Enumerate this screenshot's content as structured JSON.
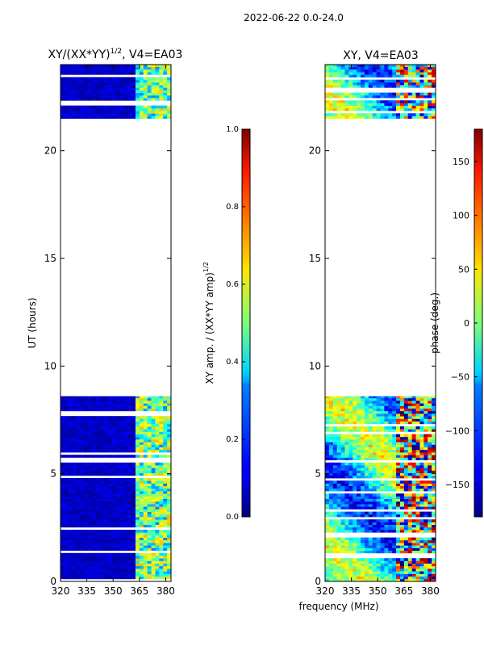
{
  "figure_title": "2022-06-22 0.0-24.0",
  "xlabel_shared": "frequency (MHz)",
  "chart_data": [
    {
      "type": "heatmap",
      "title": "XY/(XX*YY)",
      "title_sup": "1/2",
      "title_suffix": ", V4=EA03",
      "ylabel": "UT (hours)",
      "xlim": [
        320,
        383
      ],
      "ylim": [
        0,
        24
      ],
      "xticks": [
        320,
        335,
        350,
        365,
        380
      ],
      "yticks": [
        0,
        5,
        10,
        15,
        20
      ],
      "data_coverage_hours": [
        [
          0,
          8.6
        ],
        [
          21.5,
          24
        ]
      ],
      "colorbar": {
        "label": "XY amp. / (XX*YY amp)",
        "label_sup": "1/2",
        "range": [
          0.0,
          1.0
        ],
        "ticks": [
          "0.0",
          "0.2",
          "0.4",
          "0.6",
          "0.8",
          "1.0"
        ],
        "colormap": "jet"
      }
    },
    {
      "type": "heatmap",
      "title": "XY, V4=EA03",
      "xlim": [
        320,
        383
      ],
      "ylim": [
        0,
        24
      ],
      "xticks": [
        320,
        335,
        350,
        365,
        380
      ],
      "yticks": [
        0,
        5,
        10,
        15,
        20
      ],
      "data_coverage_hours": [
        [
          0,
          8.6
        ],
        [
          21.5,
          24
        ]
      ],
      "colorbar": {
        "label": "phase (deg.)",
        "range": [
          -180,
          180
        ],
        "ticks": [
          "150",
          "100",
          "50",
          "0",
          "−50",
          "−100",
          "−150"
        ],
        "colormap": "jet"
      }
    }
  ]
}
